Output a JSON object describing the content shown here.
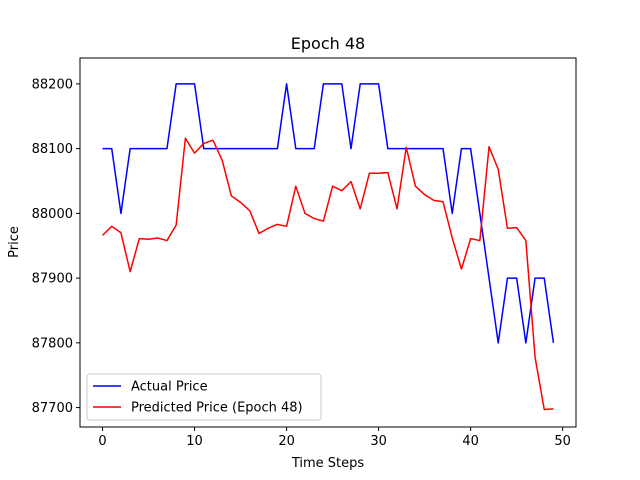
{
  "chart_data": {
    "type": "line",
    "title": "Epoch 48",
    "xlabel": "Time Steps",
    "ylabel": "Price",
    "xlim": [
      -2.45,
      51.45
    ],
    "ylim": [
      87670,
      88240
    ],
    "xticks": [
      0,
      10,
      20,
      30,
      40,
      50
    ],
    "yticks": [
      87700,
      87800,
      87900,
      88000,
      88100,
      88200
    ],
    "grid": false,
    "legend_position": "lower-left",
    "x": [
      0,
      1,
      2,
      3,
      4,
      5,
      6,
      7,
      8,
      9,
      10,
      11,
      12,
      13,
      14,
      15,
      16,
      17,
      18,
      19,
      20,
      21,
      22,
      23,
      24,
      25,
      26,
      27,
      28,
      29,
      30,
      31,
      32,
      33,
      34,
      35,
      36,
      37,
      38,
      39,
      40,
      41,
      42,
      43,
      44,
      45,
      46,
      47,
      48,
      49
    ],
    "series": [
      {
        "name": "Actual Price",
        "color": "#0000ff",
        "values": [
          88100,
          88100,
          88000,
          88100,
          88100,
          88100,
          88100,
          88100,
          88200,
          88200,
          88200,
          88100,
          88100,
          88100,
          88100,
          88100,
          88100,
          88100,
          88100,
          88100,
          88200,
          88100,
          88100,
          88100,
          88200,
          88200,
          88200,
          88100,
          88200,
          88200,
          88200,
          88100,
          88100,
          88100,
          88100,
          88100,
          88100,
          88100,
          88000,
          88100,
          88100,
          88000,
          87900,
          87800,
          87900,
          87900,
          87800,
          87900,
          87900,
          87800
        ]
      },
      {
        "name": "Predicted Price (Epoch 48)",
        "color": "#ff0000",
        "values": [
          87966,
          87980,
          87970,
          87910,
          87961,
          87960,
          87962,
          87958,
          87982,
          88116,
          88093,
          88108,
          88113,
          88082,
          88027,
          88017,
          88004,
          87969,
          87977,
          87983,
          87980,
          88042,
          88000,
          87992,
          87988,
          88042,
          88035,
          88049,
          88007,
          88062,
          88062,
          88063,
          88007,
          88102,
          88042,
          88029,
          88020,
          88018,
          87962,
          87914,
          87961,
          87958,
          88103,
          88068,
          87977,
          87978,
          87958,
          87778,
          87697,
          87698
        ]
      }
    ]
  }
}
